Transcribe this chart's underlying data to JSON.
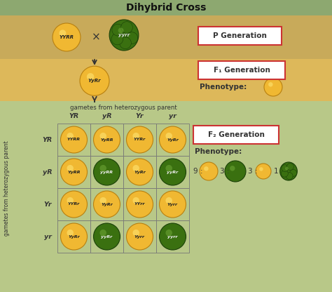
{
  "title": "Dihybrid Cross",
  "bg_header": "#8da870",
  "bg_p": "#c8aa5a",
  "bg_f1": "#ddb85a",
  "bg_f2": "#b8c888",
  "p_gen_label": "P Generation",
  "f1_gen_label": "F₁ Generation",
  "f2_gen_label": "F₂ Generation",
  "phenotype_label": "Phenotype:",
  "p1_genotype": "YYRR",
  "p2_genotype": "yyrr",
  "f1_genotype": "YyRr",
  "cross_symbol": "×",
  "gametes_label": "gametes from heterozygous parent",
  "col_gametes": [
    "YR",
    "yR",
    "Yr",
    "yr"
  ],
  "row_gametes": [
    "YR",
    "yR",
    "Yr",
    "yr"
  ],
  "row_gametes_label": "gametes from heterozygous parent",
  "grid_genotypes": [
    [
      "YYRR",
      "YyRR",
      "YYRr",
      "YyRr"
    ],
    [
      "YyRR",
      "yyRR",
      "YyRr",
      "yyRr"
    ],
    [
      "YYRr",
      "YyRr",
      "YYrr",
      "Yyrr"
    ],
    [
      "YyRr",
      "yyRr",
      "Yyrr",
      "yyrr"
    ]
  ],
  "grid_colors": [
    [
      "yellow",
      "yellow",
      "yellow",
      "yellow"
    ],
    [
      "yellow",
      "green",
      "yellow",
      "green"
    ],
    [
      "yellow",
      "yellow",
      "yellow",
      "yellow"
    ],
    [
      "yellow",
      "green",
      "yellow",
      "green"
    ]
  ],
  "border_color": "#cc3333",
  "text_color": "#333333",
  "yellow_face": "#f0b832",
  "yellow_edge": "#b88010",
  "yellow_shine": "#ffe878",
  "green_face": "#3a7010",
  "green_edge": "#1a4008",
  "green_shine": "#70a838"
}
